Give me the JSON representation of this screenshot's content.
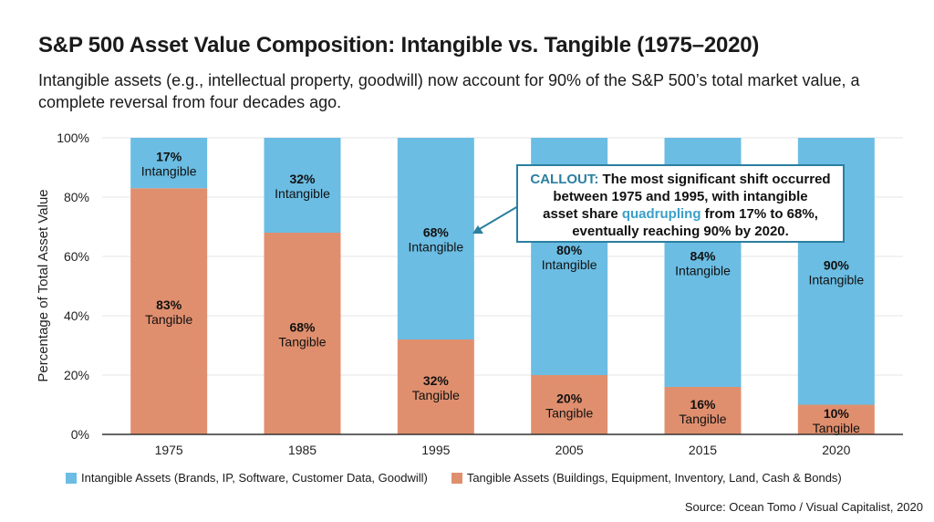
{
  "chart_data": {
    "type": "bar",
    "stacked": true,
    "title": "S&P 500 Asset Value Composition: Intangible vs. Tangible (1975–2020)",
    "subtitle": "Intangible assets (e.g., intellectual property, goodwill) now account for 90% of the S&P 500’s total market value, a complete reversal from four decades ago.",
    "xlabel": "",
    "ylabel": "Percentage of Total Asset Value",
    "ylim": [
      0,
      100
    ],
    "yticks": [
      "0%",
      "20%",
      "40%",
      "60%",
      "80%",
      "100%"
    ],
    "grid": true,
    "categories": [
      "1975",
      "1985",
      "1995",
      "2005",
      "2015",
      "2020"
    ],
    "series": [
      {
        "name": "Tangible Assets (Buildings, Equipment, Inventory, Land, Cash & Bonds)",
        "short": "Tangible",
        "color": "#e08f6e",
        "values": [
          83,
          68,
          32,
          20,
          16,
          10
        ]
      },
      {
        "name": "Intangible Assets (Brands, IP, Software, Customer Data, Goodwill)",
        "short": "Intangible",
        "color": "#6bbde3",
        "values": [
          17,
          32,
          68,
          80,
          84,
          90
        ]
      }
    ],
    "legend_position": "bottom",
    "annotation": {
      "head": "CALLOUT:",
      "line1": " The most significant shift occurred",
      "line2": "between 1975 and 1995, with intangible",
      "line3a": "asset share ",
      "line3b": "quadrupling",
      "line3c": " from 17% to 68%,",
      "line4": "eventually reaching 90% by 2020.",
      "points_to": "1995"
    },
    "source": "Source: Ocean Tomo / Visual Capitalist, 2020"
  }
}
